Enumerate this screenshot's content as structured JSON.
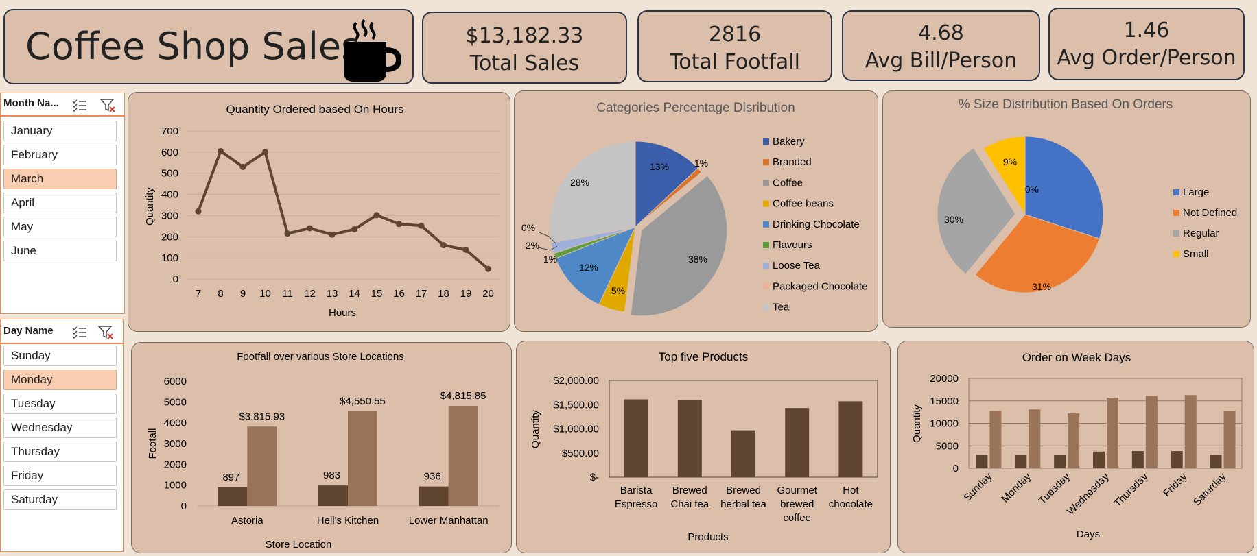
{
  "title": "Coffee Shop Sales",
  "kpis": [
    {
      "value": "$13,182.33",
      "label": "Total Sales"
    },
    {
      "value": "2816",
      "label": "Total Footfall"
    },
    {
      "value": "4.68",
      "label": "Avg Bill/Person"
    },
    {
      "value": "1.46",
      "label": "Avg Order/Person"
    }
  ],
  "month_slicer": {
    "header": "Month Na...",
    "items": [
      "January",
      "February",
      "March",
      "April",
      "May",
      "June"
    ],
    "selected": "March"
  },
  "day_slicer": {
    "header": "Day Name",
    "items": [
      "Sunday",
      "Monday",
      "Tuesday",
      "Wednesday",
      "Thursday",
      "Friday",
      "Saturday"
    ],
    "selected": "Monday"
  },
  "colors": {
    "dark_brown": "#5f4530",
    "light_brown": "#98735a",
    "panel": "#dbbfab"
  },
  "chart_data": [
    {
      "id": "hours",
      "type": "line",
      "title": "Quantity Ordered based On Hours",
      "xlabel": "Hours",
      "ylabel": "Quantity",
      "x": [
        7,
        8,
        9,
        10,
        11,
        12,
        13,
        14,
        15,
        16,
        17,
        18,
        19,
        20
      ],
      "values": [
        320,
        605,
        530,
        600,
        215,
        240,
        210,
        235,
        302,
        260,
        252,
        160,
        138,
        48
      ],
      "ylim": [
        0,
        700
      ],
      "yticks": [
        "0",
        "100",
        "200",
        "300",
        "400",
        "500",
        "600",
        "700"
      ],
      "grid": true
    },
    {
      "id": "categories",
      "type": "pie",
      "title": "Categories Percentage Disribution",
      "labels": [
        "Bakery",
        "Branded",
        "Coffee",
        "Coffee beans",
        "Drinking Chocolate",
        "Flavours",
        "Loose Tea",
        "Packaged Chocolate",
        "Tea"
      ],
      "values": [
        13,
        1,
        38,
        5,
        12,
        1,
        2,
        0,
        28
      ],
      "data_labels": [
        "13%",
        "1%",
        "38%",
        "5%",
        "12%",
        "1%",
        "2%",
        "0%",
        "28%"
      ],
      "colors": [
        "#3b5eab",
        "#d9742f",
        "#9a9a9a",
        "#e1a800",
        "#4f88c6",
        "#5e9c3e",
        "#9fb0dd",
        "#ecb39a",
        "#c4c4c4"
      ],
      "legend": "right"
    },
    {
      "id": "sizes",
      "type": "pie",
      "title": "% Size Distribution Based On Orders",
      "labels": [
        "Large",
        "Not Defined",
        "Regular",
        "Small"
      ],
      "values": [
        30,
        31,
        30,
        9
      ],
      "data_labels": [
        "30%",
        "31%",
        "30%",
        "9%"
      ],
      "colors": [
        "#4472c4",
        "#ed7d31",
        "#a5a5a5",
        "#ffc000"
      ],
      "legend": "right"
    },
    {
      "id": "footfall",
      "type": "bar",
      "title": "Footfall over various Store Locations",
      "xlabel": "Store Location",
      "ylabel": "Footall",
      "categories": [
        "Astoria",
        "Hell's Kitchen",
        "Lower Manhattan"
      ],
      "series": [
        {
          "values": [
            897,
            983,
            936
          ],
          "labels": [
            "897",
            "983",
            "936"
          ]
        },
        {
          "values": [
            3815.93,
            4550.55,
            4815.85
          ],
          "labels": [
            "$3,815.93",
            "$4,550.55",
            "$4,815.85"
          ]
        }
      ],
      "ylim": [
        0,
        6000
      ],
      "yticks": [
        "0",
        "1000",
        "2000",
        "3000",
        "4000",
        "5000",
        "6000"
      ]
    },
    {
      "id": "products",
      "type": "bar",
      "title": "Top five Products",
      "xlabel": "Products",
      "ylabel": "Quantity",
      "categories": [
        "Barista Espresso",
        "Brewed Chai tea",
        "Brewed herbal tea",
        "Gourmet brewed coffee",
        "Hot chocolate"
      ],
      "category_lines": [
        [
          "Barista",
          "Espresso"
        ],
        [
          "Brewed",
          "Chai tea"
        ],
        [
          "Brewed",
          "herbal tea"
        ],
        [
          "Gourmet",
          "brewed",
          "coffee"
        ],
        [
          "Hot",
          "chocolate"
        ]
      ],
      "values": [
        1610,
        1600,
        970,
        1430,
        1570
      ],
      "ylim": [
        0,
        2000
      ],
      "yticks": [
        "$-",
        "$500.00",
        "$1,000.00",
        "$1,500.00",
        "$2,000.00"
      ]
    },
    {
      "id": "weekdays",
      "type": "bar",
      "title": "Order on Week Days",
      "xlabel": "Days",
      "ylabel": "Quantity",
      "categories": [
        "Sunday",
        "Monday",
        "Tuesday",
        "Wednesday",
        "Thursday",
        "Friday",
        "Saturday"
      ],
      "series": [
        {
          "values": [
            3000,
            3000,
            2900,
            3700,
            3800,
            3800,
            3000
          ]
        },
        {
          "values": [
            12700,
            13100,
            12200,
            15700,
            16100,
            16300,
            12800
          ]
        }
      ],
      "ylim": [
        0,
        20000
      ],
      "yticks": [
        "0",
        "5000",
        "10000",
        "15000",
        "20000"
      ],
      "grid": true
    }
  ]
}
